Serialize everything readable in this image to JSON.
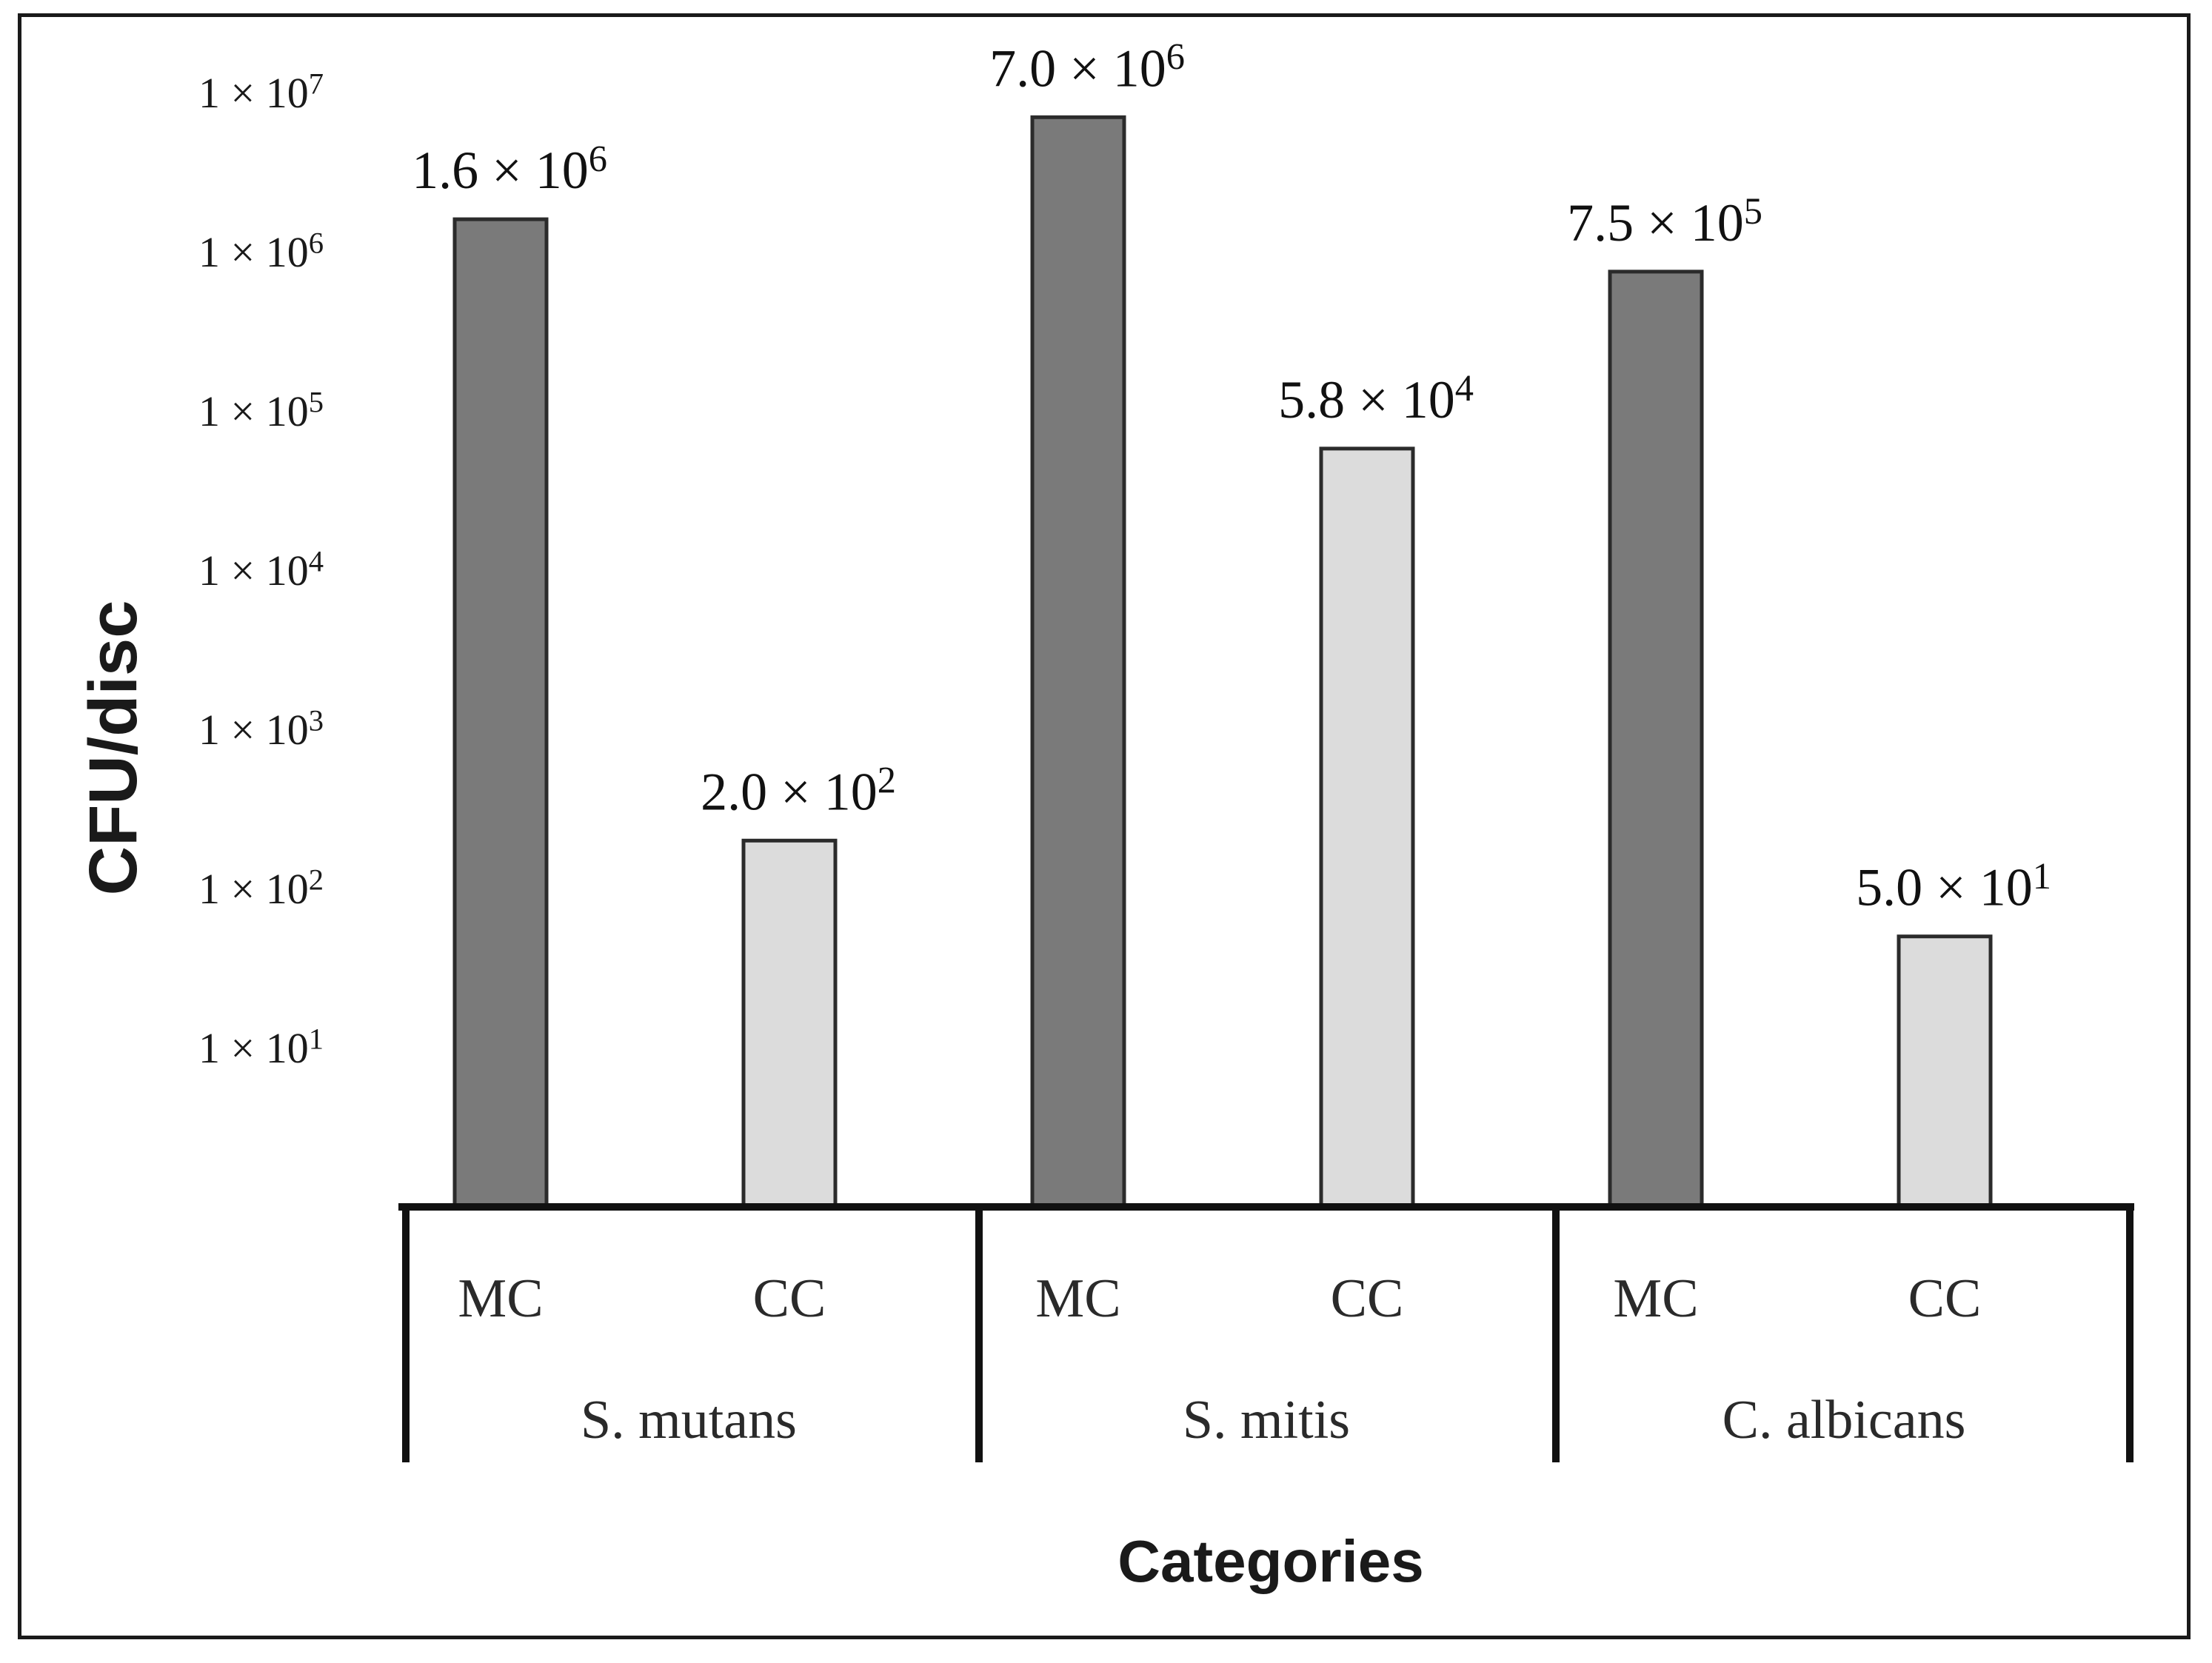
{
  "chart_data": {
    "type": "bar",
    "title": "",
    "xlabel": "Categories",
    "ylabel": "CFU/disc",
    "scale": "log",
    "ylim": [
      1,
      10000000
    ],
    "yticks": [
      {
        "value": 10000000,
        "base": "1 × 10",
        "exp": "7"
      },
      {
        "value": 1000000,
        "base": "1 × 10",
        "exp": "6"
      },
      {
        "value": 100000,
        "base": "1 × 10",
        "exp": "5"
      },
      {
        "value": 10000,
        "base": "1 × 10",
        "exp": "4"
      },
      {
        "value": 1000,
        "base": "1 × 10",
        "exp": "3"
      },
      {
        "value": 100,
        "base": "1 × 10",
        "exp": "2"
      },
      {
        "value": 10,
        "base": "1 × 10",
        "exp": "1"
      }
    ],
    "groups": [
      "S. mutans",
      "S. mitis",
      "C. albicans"
    ],
    "bars": [
      {
        "group": "S. mutans",
        "category": "MC",
        "value": 1600000,
        "label_base": "1.6 × 10",
        "label_exp": "6",
        "color": "#7a7a7a"
      },
      {
        "group": "S. mutans",
        "category": "CC",
        "value": 200,
        "label_base": "2.0 × 10",
        "label_exp": "2",
        "color": "#dcdcdc"
      },
      {
        "group": "S. mitis",
        "category": "MC",
        "value": 7000000,
        "label_base": "7.0 × 10",
        "label_exp": "6",
        "color": "#7a7a7a"
      },
      {
        "group": "S. mitis",
        "category": "CC",
        "value": 58000,
        "label_base": "5.8 × 10",
        "label_exp": "4",
        "color": "#dcdcdc"
      },
      {
        "group": "C. albicans",
        "category": "MC",
        "value": 750000,
        "label_base": "7.5 × 10",
        "label_exp": "5",
        "color": "#7a7a7a"
      },
      {
        "group": "C. albicans",
        "category": "CC",
        "value": 50,
        "label_base": "5.0 × 10",
        "label_exp": "1",
        "color": "#dcdcdc"
      }
    ]
  }
}
